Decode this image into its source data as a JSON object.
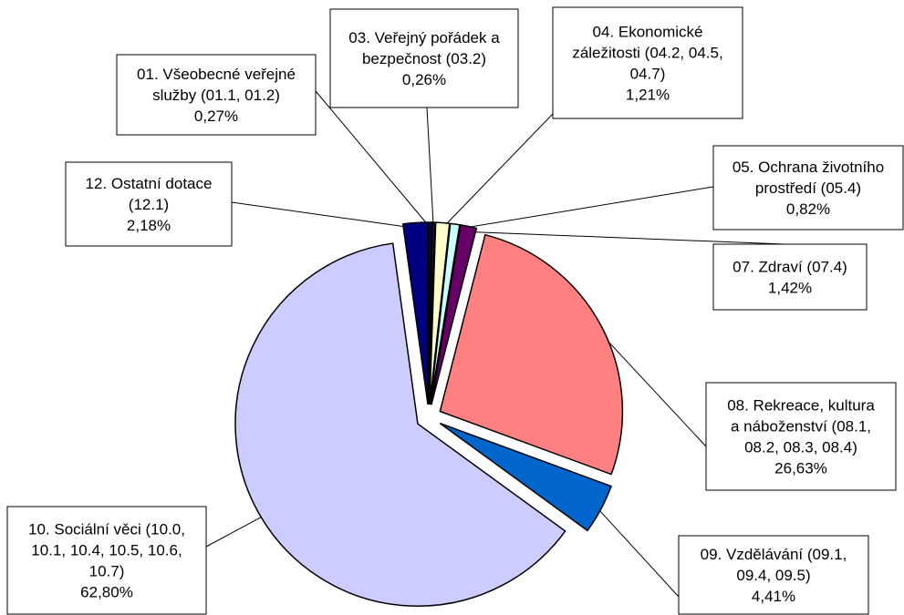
{
  "chart_data": {
    "type": "pie",
    "categories": [
      "01. Všeobecné veřejné služby (01.1, 01.2)",
      "03. Veřejný pořádek a bezpečnost (03.2)",
      "04. Ekonomické záležitosti (04.2, 04.5, 04.7)",
      "05. Ochrana životního prostředí (05.4)",
      "07. Zdraví (07.4)",
      "08. Rekreace, kultura a náboženství (08.1, 08.2, 08.3, 08.4)",
      "09. Vzdělávání (09.1, 09.4, 09.5)",
      "10. Sociální věci (10.0, 10.1, 10.4, 10.5, 10.6, 10.7)",
      "12. Ostatní dotace (12.1)"
    ],
    "values": [
      0.27,
      0.26,
      1.21,
      0.82,
      1.42,
      26.63,
      4.41,
      62.8,
      2.18
    ],
    "value_labels": [
      "0,27%",
      "0,26%",
      "1,21%",
      "0,82%",
      "1,42%",
      "26,63%",
      "4,41%",
      "62,80%",
      "2,18%"
    ],
    "colors": [
      "#000080",
      "#1a1a1a",
      "#ffffcc",
      "#ccffff",
      "#660066",
      "#ff8080",
      "#0066cc",
      "#ccccff",
      "#000080"
    ]
  }
}
